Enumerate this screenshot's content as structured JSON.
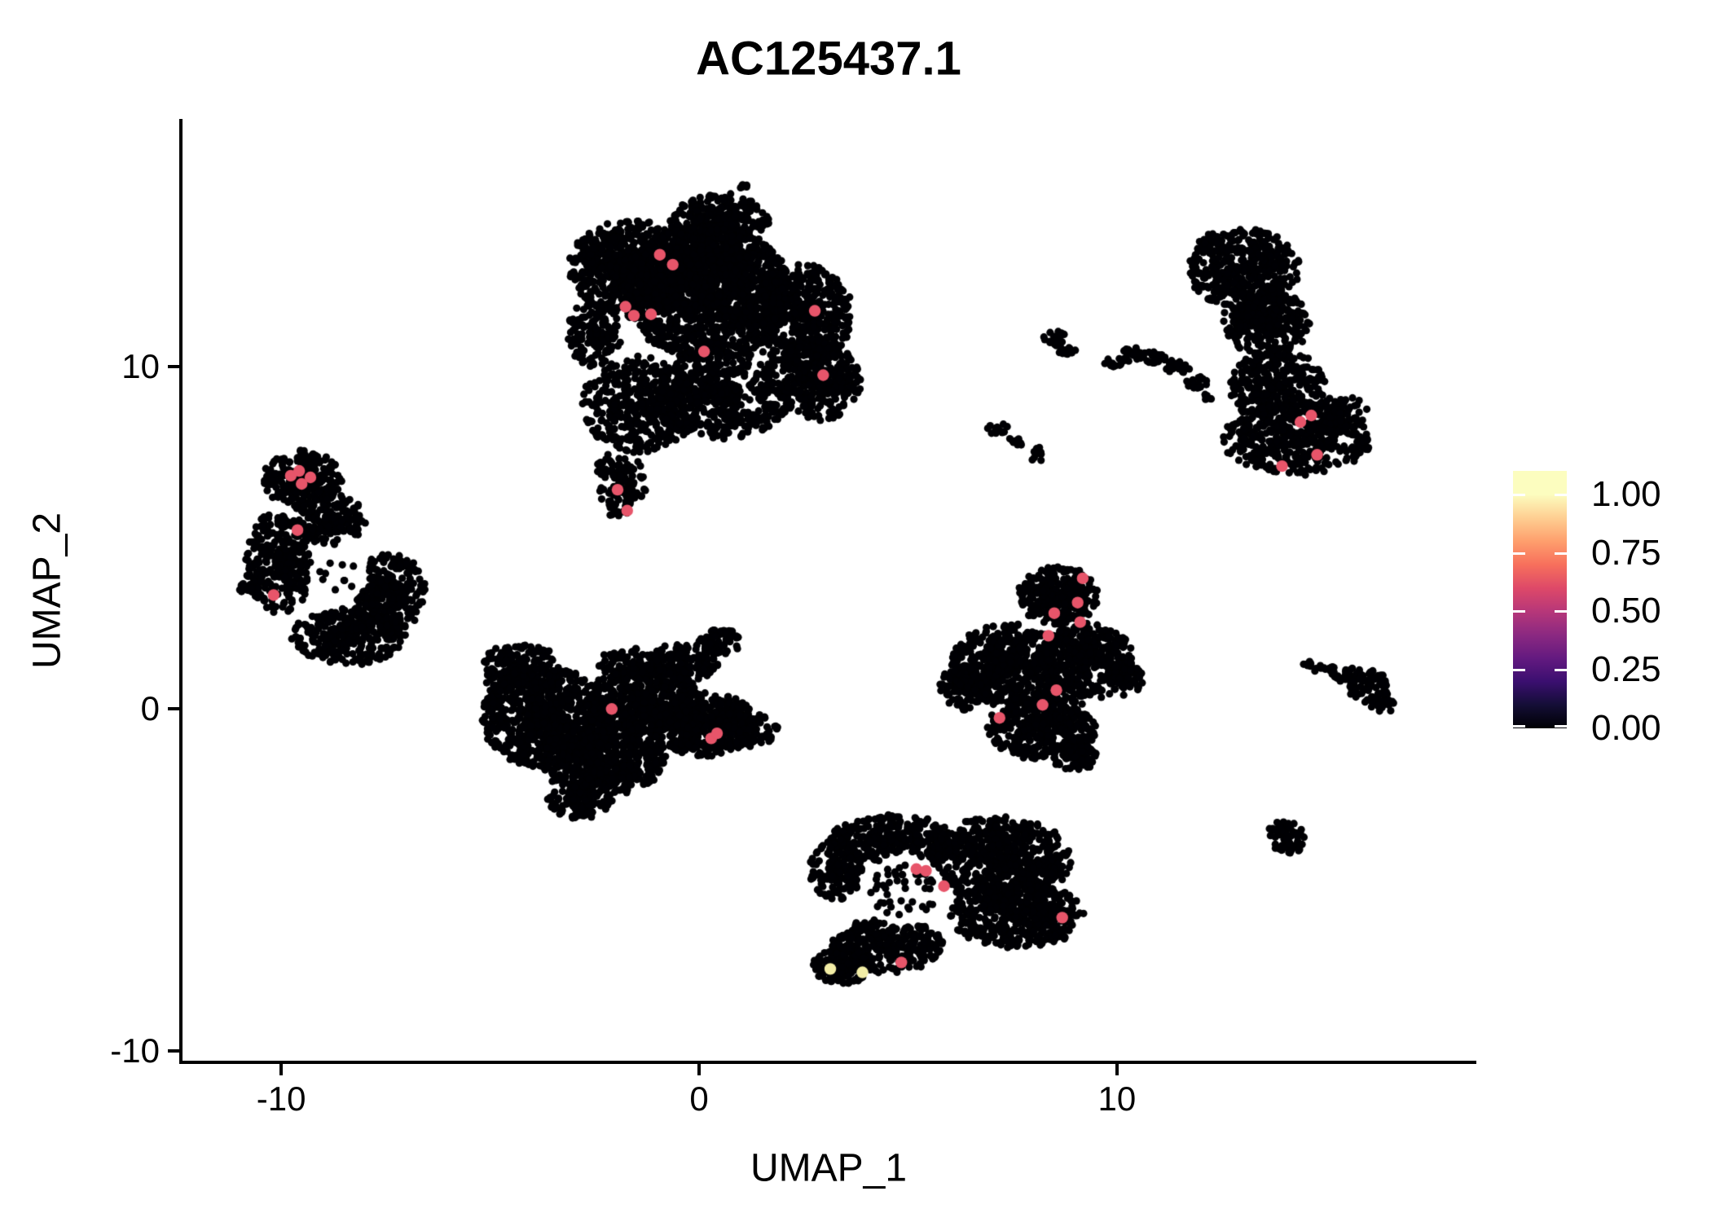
{
  "title": "AC125437.1",
  "axes": {
    "x": {
      "label": "UMAP_1",
      "ticks": [
        -10,
        0,
        10
      ],
      "range": [
        -12.4,
        18.6
      ]
    },
    "y": {
      "label": "UMAP_2",
      "ticks": [
        -10,
        0,
        10
      ],
      "range": [
        -10.33,
        17.25
      ]
    }
  },
  "legend": {
    "tick_labels": [
      "1.00",
      "0.75",
      "0.50",
      "0.25",
      "0.00"
    ],
    "tick_values": [
      1.0,
      0.75,
      0.5,
      0.25,
      0.0
    ],
    "bar_value_range": [
      0,
      1.1
    ],
    "colormap": "magma",
    "colormap_stops": [
      [
        0.0,
        "#000004"
      ],
      [
        0.1,
        "#140e36"
      ],
      [
        0.2,
        "#3b0f70"
      ],
      [
        0.3,
        "#641a80"
      ],
      [
        0.4,
        "#8c2981"
      ],
      [
        0.5,
        "#b73779"
      ],
      [
        0.6,
        "#de4968"
      ],
      [
        0.7,
        "#f7705c"
      ],
      [
        0.8,
        "#fe9f6d"
      ],
      [
        0.9,
        "#fecf92"
      ],
      [
        1.0,
        "#fcfdbf"
      ]
    ]
  },
  "colors": {
    "background": "#ffffff",
    "point": "#000004",
    "highlight_mid": "#e7556a",
    "highlight_high": "#f2eda6",
    "axis": "#000000"
  },
  "chart_data": {
    "type": "scatter",
    "title": "AC125437.1",
    "xlabel": "UMAP_1",
    "ylabel": "UMAP_2",
    "xlim": [
      -12.4,
      18.6
    ],
    "ylim": [
      -10.33,
      17.25
    ],
    "legend_title": "",
    "description": "Seurat-style UMAP feature plot of gene AC125437.1; nearly all cells have expression 0 (black, magma colormap); a few scattered cells express at ~0.65 (salmon) and two at ~0.95 (pale yellow).",
    "clusters": [
      {
        "name": "top-center-large",
        "holes": [],
        "blobs": [
          [
            -1.6,
            12.9,
            1.5,
            1.4,
            650
          ],
          [
            0.2,
            12.2,
            2.0,
            2.0,
            1400
          ],
          [
            2.4,
            11.5,
            1.3,
            1.5,
            550
          ],
          [
            2.9,
            9.6,
            1.0,
            1.2,
            300
          ],
          [
            0.5,
            9.2,
            1.7,
            1.3,
            500
          ],
          [
            -1.4,
            8.9,
            1.4,
            1.4,
            420
          ],
          [
            -1.9,
            6.6,
            0.6,
            1.0,
            110
          ],
          [
            0.5,
            14.3,
            1.2,
            0.75,
            260
          ],
          [
            -2.5,
            11.0,
            0.65,
            1.0,
            150
          ],
          [
            0.35,
            13.15,
            0.7,
            0.45,
            90
          ],
          [
            0.9,
            12.8,
            0.35,
            0.28,
            35
          ],
          [
            1.05,
            15.25,
            0.14,
            0.12,
            7
          ]
        ]
      },
      {
        "name": "right-tall",
        "holes": [],
        "blobs": [
          [
            13.0,
            12.9,
            1.35,
            1.2,
            400
          ],
          [
            13.55,
            11.3,
            1.05,
            1.0,
            300
          ],
          [
            13.85,
            9.4,
            1.15,
            1.1,
            320
          ],
          [
            14.3,
            7.9,
            1.8,
            1.05,
            420
          ],
          [
            15.3,
            8.6,
            0.7,
            0.6,
            90
          ]
        ]
      },
      {
        "name": "left-ring",
        "holes": [
          [
            -8.6,
            3.9,
            0.72
          ]
        ],
        "blobs": [
          [
            -9.5,
            6.7,
            0.95,
            0.85,
            240
          ],
          [
            -10.05,
            4.3,
            0.8,
            1.5,
            300
          ],
          [
            -8.4,
            2.1,
            1.35,
            0.85,
            330
          ],
          [
            -7.4,
            3.4,
            0.85,
            1.15,
            280
          ],
          [
            -8.8,
            5.5,
            0.8,
            0.75,
            170
          ]
        ]
      },
      {
        "name": "left-ring-inner-speckle",
        "holes": [],
        "blobs": [
          [
            -8.6,
            3.9,
            0.5,
            0.5,
            10
          ]
        ]
      },
      {
        "name": "left-speck",
        "holes": [],
        "blobs": [
          [
            -10.85,
            3.5,
            0.24,
            0.2,
            11
          ]
        ]
      },
      {
        "name": "center-left",
        "holes": [],
        "blobs": [
          [
            -3.7,
            -0.2,
            1.5,
            1.5,
            800
          ],
          [
            -2.3,
            -1.4,
            1.5,
            1.15,
            600
          ],
          [
            -1.3,
            0.3,
            1.3,
            1.0,
            450
          ],
          [
            0.1,
            -0.45,
            1.25,
            0.95,
            420
          ],
          [
            -4.3,
            1.2,
            0.9,
            0.8,
            170
          ],
          [
            -0.4,
            1.35,
            0.85,
            0.55,
            140
          ],
          [
            0.5,
            2.0,
            0.5,
            0.4,
            70
          ],
          [
            -1.6,
            1.3,
            0.8,
            0.5,
            70
          ],
          [
            -2.9,
            -2.6,
            0.8,
            0.6,
            130
          ],
          [
            1.1,
            -0.6,
            0.8,
            0.55,
            110
          ]
        ]
      },
      {
        "name": "center-right-triangle",
        "holes": [],
        "blobs": [
          [
            8.6,
            3.3,
            0.95,
            0.85,
            260
          ],
          [
            7.4,
            1.3,
            1.35,
            1.2,
            480
          ],
          [
            9.3,
            1.4,
            1.1,
            1.1,
            380
          ],
          [
            8.2,
            -0.5,
            1.3,
            1.0,
            420
          ],
          [
            6.3,
            0.6,
            0.6,
            0.65,
            120
          ],
          [
            9.0,
            -1.4,
            0.5,
            0.4,
            60
          ],
          [
            10.2,
            0.9,
            0.4,
            0.5,
            60
          ]
        ]
      },
      {
        "name": "bottom-center",
        "holes": [
          [
            4.9,
            -5.3,
            1.05
          ]
        ],
        "blobs": [
          [
            4.6,
            -3.85,
            1.5,
            0.75,
            280
          ],
          [
            7.2,
            -4.4,
            1.7,
            1.25,
            650
          ],
          [
            7.6,
            -6.0,
            1.6,
            1.0,
            480
          ],
          [
            4.5,
            -6.9,
            1.35,
            0.8,
            330
          ],
          [
            3.4,
            -7.5,
            0.7,
            0.55,
            140
          ],
          [
            3.3,
            -4.7,
            0.65,
            0.9,
            140
          ]
        ]
      },
      {
        "name": "bottom-center-inner-speckle",
        "holes": [],
        "blobs": [
          [
            4.9,
            -5.3,
            0.85,
            0.75,
            48
          ]
        ]
      },
      {
        "name": "upper-right-specks",
        "holes": [],
        "blobs": [
          [
            8.55,
            10.85,
            0.3,
            0.24,
            22
          ],
          [
            8.8,
            10.42,
            0.22,
            0.18,
            13
          ],
          [
            7.15,
            8.2,
            0.28,
            0.18,
            13
          ],
          [
            7.6,
            7.8,
            0.2,
            0.14,
            8
          ],
          [
            8.1,
            7.45,
            0.24,
            0.18,
            11
          ]
        ]
      },
      {
        "name": "upper-right-arc",
        "holes": [],
        "blobs": [
          [
            9.9,
            10.1,
            0.22,
            0.14,
            10
          ],
          [
            10.35,
            10.35,
            0.33,
            0.22,
            26
          ],
          [
            10.9,
            10.28,
            0.3,
            0.18,
            22
          ],
          [
            11.45,
            10.0,
            0.3,
            0.18,
            20
          ],
          [
            11.9,
            9.5,
            0.27,
            0.2,
            16
          ],
          [
            12.15,
            9.1,
            0.17,
            0.13,
            7
          ]
        ]
      },
      {
        "name": "right-wedge",
        "holes": [],
        "blobs": [
          [
            14.6,
            1.3,
            0.18,
            0.1,
            6
          ],
          [
            15.0,
            1.15,
            0.28,
            0.12,
            11
          ],
          [
            15.5,
            1.0,
            0.38,
            0.2,
            26
          ],
          [
            16.05,
            0.65,
            0.5,
            0.45,
            75
          ],
          [
            16.35,
            0.12,
            0.3,
            0.22,
            22
          ]
        ]
      },
      {
        "name": "right-small-round",
        "holes": [],
        "blobs": [
          [
            14.05,
            -3.75,
            0.48,
            0.5,
            65
          ]
        ]
      }
    ],
    "expressing_cells": {
      "mid_value": 0.65,
      "mid": [
        [
          -0.94,
          13.28
        ],
        [
          -0.63,
          12.99
        ],
        [
          -1.76,
          11.76
        ],
        [
          -1.56,
          11.5
        ],
        [
          -1.15,
          11.54
        ],
        [
          0.12,
          10.45
        ],
        [
          2.77,
          11.64
        ],
        [
          2.97,
          9.76
        ],
        [
          -1.95,
          6.41
        ],
        [
          -1.72,
          5.8
        ],
        [
          -9.77,
          6.82
        ],
        [
          -9.57,
          6.96
        ],
        [
          -9.3,
          6.77
        ],
        [
          -9.51,
          6.58
        ],
        [
          -9.61,
          5.23
        ],
        [
          -10.18,
          3.33
        ],
        [
          -2.09,
          0.0
        ],
        [
          0.29,
          -0.86
        ],
        [
          0.43,
          -0.71
        ],
        [
          9.18,
          3.82
        ],
        [
          9.06,
          3.11
        ],
        [
          8.5,
          2.8
        ],
        [
          9.12,
          2.54
        ],
        [
          8.36,
          2.14
        ],
        [
          8.55,
          0.55
        ],
        [
          8.22,
          0.12
        ],
        [
          7.19,
          -0.26
        ],
        [
          14.39,
          8.39
        ],
        [
          14.65,
          8.58
        ],
        [
          14.79,
          7.43
        ],
        [
          13.95,
          7.1
        ],
        [
          5.2,
          -4.68
        ],
        [
          5.43,
          -4.73
        ],
        [
          5.86,
          -5.18
        ],
        [
          4.84,
          -7.41
        ],
        [
          8.69,
          -6.1
        ]
      ],
      "high_value": 0.95,
      "high": [
        [
          3.14,
          -7.6
        ],
        [
          3.91,
          -7.7
        ]
      ]
    }
  }
}
